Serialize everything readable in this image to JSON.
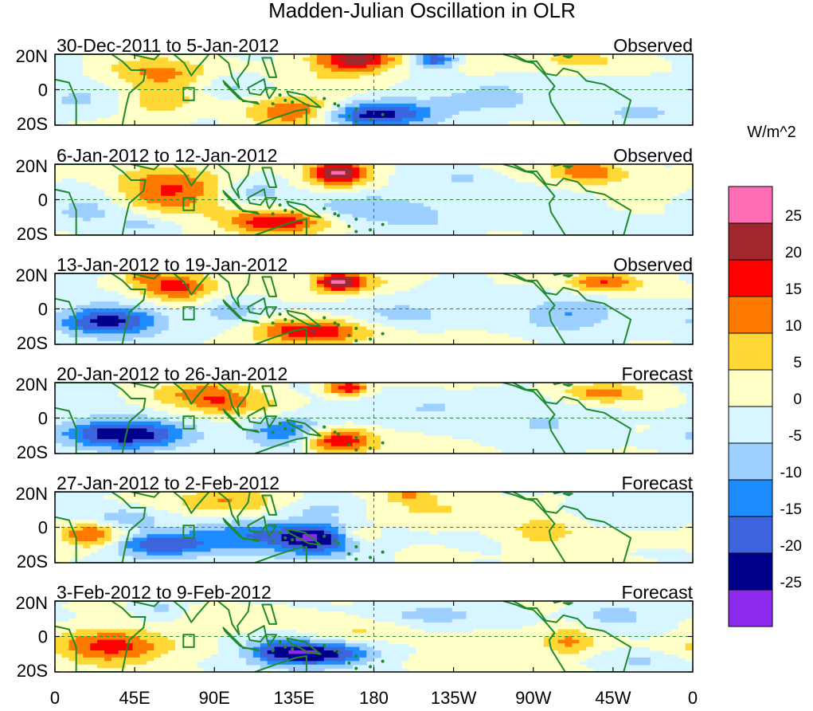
{
  "chart_data": {
    "type": "heatmap",
    "title": "Madden-Julian Oscillation in OLR",
    "units": "W/m^2",
    "x_ticks": [
      "0",
      "45E",
      "90E",
      "135E",
      "180",
      "135W",
      "90W",
      "45W",
      "0"
    ],
    "y_ticks": [
      "20N",
      "0",
      "20S"
    ],
    "colorbar": {
      "labels": [
        "25",
        "20",
        "15",
        "10",
        "5",
        "0",
        "-5",
        "-10",
        "-15",
        "-20",
        "-25"
      ],
      "colors": [
        "#ff6eb4",
        "#a0282d",
        "#ff0000",
        "#ff7a00",
        "#ffd835",
        "#ffffc8",
        "#d8f6ff",
        "#9ed0ff",
        "#1e8cff",
        "#3c64dc",
        "#00008c",
        "#8c2aee"
      ]
    },
    "panels": [
      {
        "period": "30-Dec-2011 to 5-Jan-2012",
        "kind": "Observed",
        "blobs": [
          [
            60,
            8,
            22,
            7,
            12
          ],
          [
            58,
            -8,
            16,
            5,
            8
          ],
          [
            170,
            17,
            16,
            5,
            23
          ],
          [
            215,
            17,
            7,
            3,
            -20
          ],
          [
            138,
            -13,
            20,
            6,
            18
          ],
          [
            178,
            -14,
            24,
            5,
            -25
          ],
          [
            20,
            -3,
            20,
            7,
            -7
          ],
          [
            100,
            2,
            14,
            5,
            -6
          ],
          [
            250,
            -3,
            25,
            8,
            -7
          ],
          [
            300,
            17,
            22,
            5,
            6
          ],
          [
            240,
            12,
            12,
            4,
            4
          ],
          [
            330,
            -13,
            18,
            5,
            -5
          ],
          [
            5,
            16,
            8,
            5,
            -3
          ],
          [
            150,
            4,
            20,
            5,
            3
          ]
        ]
      },
      {
        "period": "6-Jan-2012 to 12-Jan-2012",
        "kind": "Observed",
        "blobs": [
          [
            65,
            5,
            22,
            9,
            17
          ],
          [
            160,
            15,
            12,
            5,
            26
          ],
          [
            125,
            -13,
            20,
            5,
            20
          ],
          [
            300,
            16,
            14,
            5,
            14
          ],
          [
            20,
            -4,
            18,
            8,
            -8
          ],
          [
            112,
            5,
            15,
            5,
            -8
          ],
          [
            175,
            -5,
            28,
            6,
            -8
          ],
          [
            232,
            12,
            10,
            4,
            -6
          ],
          [
            270,
            -6,
            22,
            7,
            -5
          ],
          [
            330,
            6,
            18,
            6,
            4
          ],
          [
            50,
            -14,
            10,
            4,
            -6
          ],
          [
            210,
            -14,
            20,
            5,
            -4
          ]
        ]
      },
      {
        "period": "13-Jan-2012 to 19-Jan-2012",
        "kind": "Observed",
        "blobs": [
          [
            68,
            12,
            15,
            6,
            17
          ],
          [
            145,
            -13,
            22,
            5,
            20
          ],
          [
            50,
            18,
            8,
            3,
            8
          ],
          [
            160,
            15,
            10,
            4,
            26
          ],
          [
            180,
            15,
            12,
            4,
            6
          ],
          [
            310,
            15,
            14,
            4,
            15
          ],
          [
            30,
            -7,
            20,
            6,
            -22
          ],
          [
            100,
            -2,
            14,
            6,
            -8
          ],
          [
            290,
            -3,
            20,
            6,
            -10
          ],
          [
            200,
            -2,
            25,
            6,
            -6
          ],
          [
            10,
            18,
            8,
            3,
            -4
          ],
          [
            230,
            15,
            10,
            4,
            -4
          ]
        ]
      },
      {
        "period": "20-Jan-2012 to 26-Jan-2012",
        "kind": "Forecast",
        "blobs": [
          [
            85,
            13,
            22,
            6,
            12
          ],
          [
            160,
            -13,
            15,
            5,
            20
          ],
          [
            165,
            17,
            8,
            3,
            21
          ],
          [
            310,
            14,
            16,
            4,
            12
          ],
          [
            40,
            -9,
            25,
            6,
            -24
          ],
          [
            95,
            7,
            12,
            4,
            6
          ],
          [
            130,
            -8,
            15,
            6,
            -15
          ],
          [
            210,
            5,
            30,
            6,
            -6
          ],
          [
            280,
            -3,
            25,
            7,
            -5
          ],
          [
            15,
            12,
            12,
            5,
            -4
          ],
          [
            120,
            5,
            12,
            4,
            4
          ]
        ]
      },
      {
        "period": "27-Jan-2012 to 2-Feb-2012",
        "kind": "Forecast",
        "blobs": [
          [
            20,
            -5,
            12,
            5,
            17
          ],
          [
            100,
            15,
            22,
            5,
            10
          ],
          [
            150,
            -7,
            20,
            6,
            -24
          ],
          [
            60,
            -10,
            20,
            5,
            -18
          ],
          [
            105,
            -5,
            25,
            6,
            -12
          ],
          [
            170,
            -5,
            10,
            4,
            14
          ],
          [
            275,
            -2,
            14,
            7,
            8
          ],
          [
            40,
            5,
            15,
            4,
            -8
          ],
          [
            150,
            10,
            15,
            4,
            -6
          ],
          [
            215,
            10,
            20,
            4,
            6
          ],
          [
            200,
            18,
            10,
            3,
            10
          ],
          [
            320,
            10,
            20,
            6,
            -5
          ]
        ]
      },
      {
        "period": "3-Feb-2012 to 9-Feb-2012",
        "kind": "Forecast",
        "blobs": [
          [
            30,
            -6,
            22,
            7,
            17
          ],
          [
            60,
            15,
            10,
            5,
            -8
          ],
          [
            150,
            -10,
            20,
            5,
            -24
          ],
          [
            125,
            -8,
            12,
            5,
            -12
          ],
          [
            290,
            -3,
            10,
            6,
            10
          ],
          [
            100,
            10,
            25,
            5,
            5
          ],
          [
            315,
            12,
            16,
            5,
            -8
          ],
          [
            210,
            12,
            25,
            5,
            -6
          ],
          [
            170,
            3,
            18,
            5,
            5
          ],
          [
            240,
            -8,
            20,
            6,
            5
          ],
          [
            330,
            -14,
            20,
            4,
            -5
          ]
        ]
      }
    ]
  }
}
